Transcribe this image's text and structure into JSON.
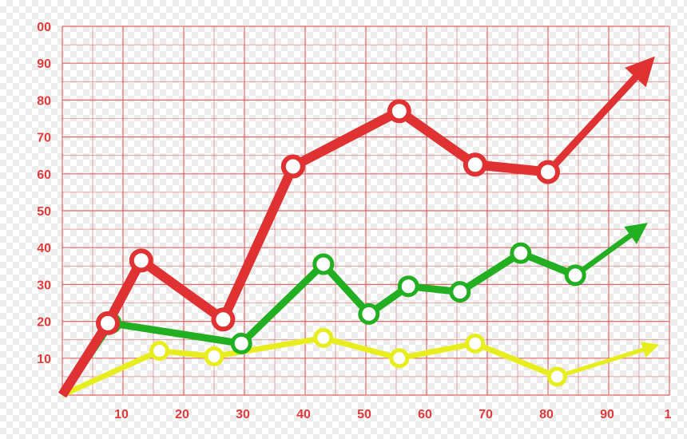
{
  "chart_data": {
    "type": "line",
    "x_ticks": [
      "10",
      "20",
      "30",
      "40",
      "50",
      "60",
      "70",
      "80",
      "90",
      "1"
    ],
    "y_ticks": [
      "10",
      "20",
      "30",
      "40",
      "50",
      "60",
      "70",
      "80",
      "90",
      "00"
    ],
    "xlim": [
      0,
      100
    ],
    "ylim": [
      0,
      100
    ],
    "grid": true,
    "series": [
      {
        "color": "#e03232",
        "points": [
          [
            0,
            0
          ],
          [
            7.5,
            19.5
          ],
          [
            13,
            36.5
          ],
          [
            26.5,
            20.5
          ],
          [
            38,
            62
          ],
          [
            55.5,
            77
          ],
          [
            68,
            62.5
          ],
          [
            80,
            60.5
          ]
        ],
        "arrow_to": [
          96,
          89
        ]
      },
      {
        "color": "#22b022",
        "points": [
          [
            0,
            0
          ],
          [
            8,
            19.5
          ],
          [
            29.5,
            14
          ],
          [
            43,
            35.5
          ],
          [
            50.5,
            22
          ],
          [
            57,
            29.5
          ],
          [
            65.5,
            28
          ],
          [
            75.5,
            38.5
          ],
          [
            84.5,
            32.5
          ]
        ],
        "arrow_to": [
          95,
          45
        ]
      },
      {
        "color": "#e8ee1e",
        "points": [
          [
            0,
            0
          ],
          [
            16,
            12
          ],
          [
            25,
            10.5
          ],
          [
            43,
            15.5
          ],
          [
            55.5,
            10
          ],
          [
            68,
            14
          ],
          [
            81.5,
            5
          ]
        ],
        "arrow_to": [
          97,
          13
        ]
      }
    ],
    "colors": {
      "grid": "#e06060",
      "tick_label": "#e23a3a"
    }
  }
}
